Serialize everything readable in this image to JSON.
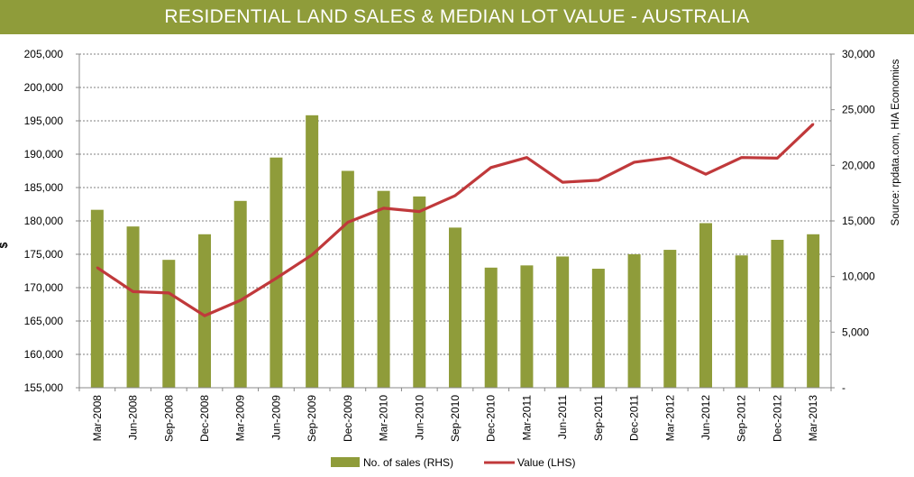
{
  "chart_data": {
    "type": "bar",
    "title": "RESIDENTIAL LAND SALES & MEDIAN LOT VALUE - AUSTRALIA",
    "ylabel": "$",
    "source": "Source: rpdata.com, HIA Economics",
    "categories": [
      "Mar-2008",
      "Jun-2008",
      "Sep-2008",
      "Dec-2008",
      "Mar-2009",
      "Jun-2009",
      "Sep-2009",
      "Dec-2009",
      "Mar-2010",
      "Jun-2010",
      "Sep-2010",
      "Dec-2010",
      "Mar-2011",
      "Jun-2011",
      "Sep-2011",
      "Dec-2011",
      "Mar-2012",
      "Jun-2012",
      "Sep-2012",
      "Dec-2012",
      "Mar-2013"
    ],
    "left_axis": {
      "min": 155000,
      "max": 205000,
      "ticks": [
        "155,000",
        "160,000",
        "165,000",
        "170,000",
        "175,000",
        "180,000",
        "185,000",
        "190,000",
        "195,000",
        "200,000",
        "205,000"
      ]
    },
    "right_axis": {
      "min": 0,
      "max": 30000,
      "ticks": [
        "-",
        "5,000",
        "10,000",
        "15,000",
        "20,000",
        "25,000",
        "30,000"
      ]
    },
    "series": [
      {
        "name": "No. of sales (RHS)",
        "type": "bar",
        "axis": "right",
        "color": "#8f9c3a",
        "values": [
          16000,
          14500,
          11500,
          13800,
          16800,
          20700,
          24500,
          19500,
          17700,
          17200,
          14400,
          10800,
          11000,
          11800,
          10700,
          12000,
          12400,
          14800,
          11900,
          13300,
          13800
        ]
      },
      {
        "name": "Value (LHS)",
        "type": "line",
        "axis": "left",
        "color": "#c0393b",
        "values": [
          173000,
          169400,
          169200,
          165800,
          168100,
          171400,
          174900,
          179800,
          181900,
          181400,
          183800,
          188000,
          189500,
          185800,
          186100,
          188800,
          189500,
          187000,
          189500,
          189400,
          194500
        ]
      }
    ],
    "legend": {
      "position": "bottom",
      "items": [
        "No. of sales (RHS)",
        "Value (LHS)"
      ]
    },
    "grid": true
  }
}
